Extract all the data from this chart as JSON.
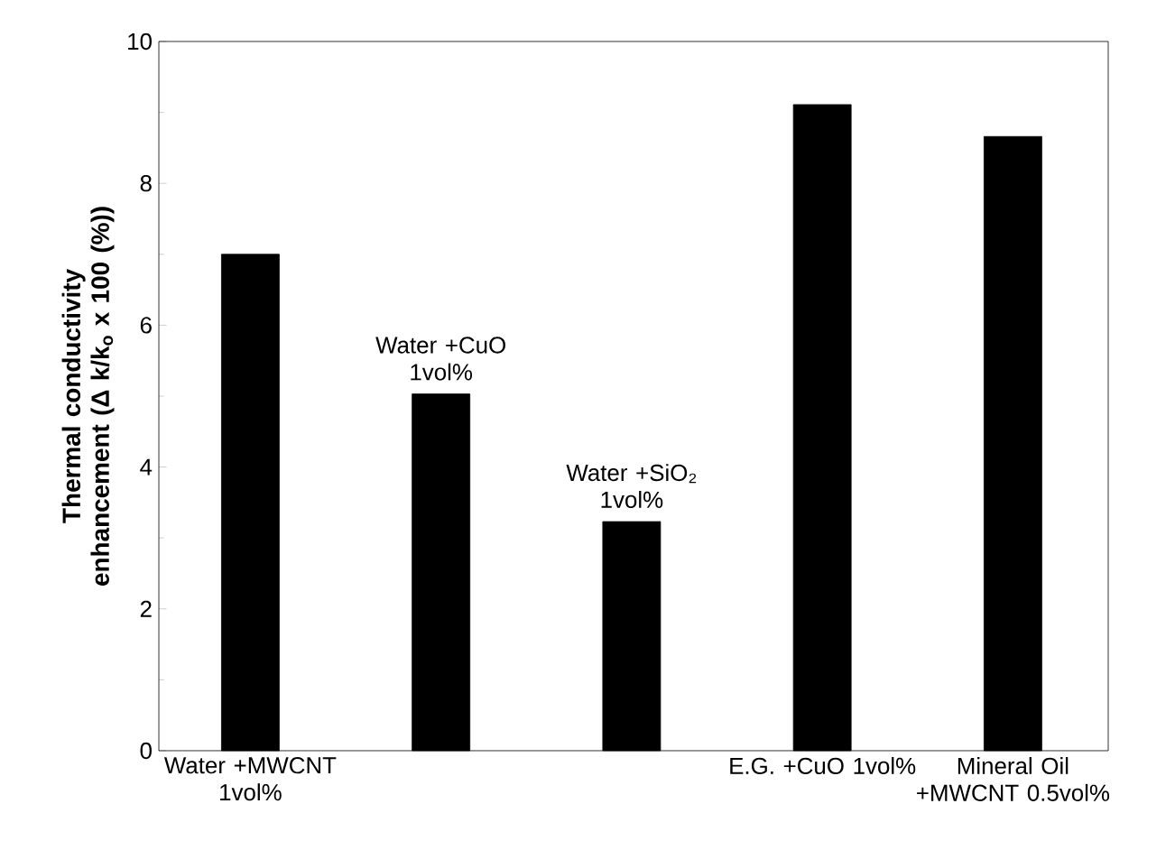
{
  "chart_data": {
    "type": "bar",
    "ylabel": "Thermal conductivity enhancement (Δ k/k$_{o}$ x 100 (%))",
    "categories": [
      "Water +MWCNT 1vol%",
      null,
      null,
      "E.G. +CuO 1vol%",
      "Mineral Oil +MWCNT 0.5vol%"
    ],
    "values": [
      7.0,
      5.03,
      3.23,
      9.11,
      8.66
    ],
    "color": "#000000",
    "ylim": [
      0,
      10
    ],
    "yticks": [
      0,
      2,
      4,
      6,
      8,
      10
    ],
    "annotations": [
      {
        "text": "Water +CuO 1vol%",
        "y": 5.03
      },
      {
        "text": "Water +SiO₂ 1vol%",
        "y": 3.23
      }
    ]
  }
}
